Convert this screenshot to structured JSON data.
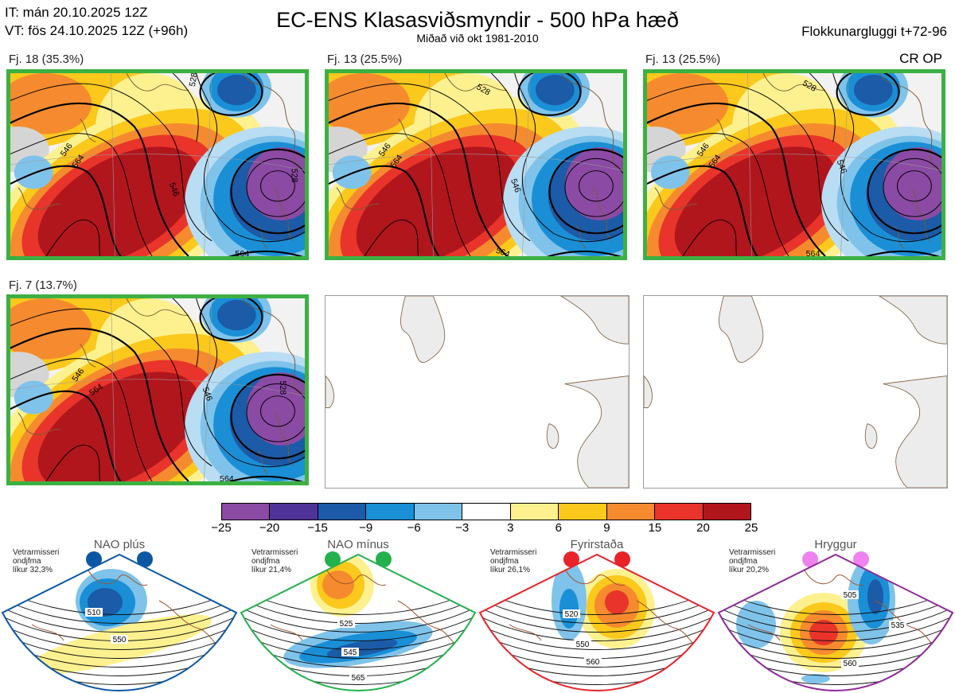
{
  "header": {
    "it": "IT: mán 20.10.2025 12Z",
    "vt": "VT: fös 24.10.2025 12Z  (+96h)",
    "title": "EC-ENS Klasasviðsmyndir - 500 hPa hæð",
    "subtitle": "Miðað við okt 1981-2010",
    "window": "Flokkunargluggi t+72-96",
    "legend_tag": "CR OP"
  },
  "panels": [
    {
      "label": "Fj. 18 (35.3%)",
      "highlighted": true,
      "contours": [
        "528",
        "546",
        "564",
        "528",
        "564",
        "546"
      ]
    },
    {
      "label": "Fj. 13 (25.5%)",
      "highlighted": true,
      "contours": [
        "528",
        "546",
        "564",
        "546",
        "564"
      ]
    },
    {
      "label": "Fj. 13 (25.5%)",
      "highlighted": true,
      "contours": [
        "528",
        "546",
        "564",
        "546",
        "564"
      ]
    },
    {
      "label": "Fj. 7 (13.7%)",
      "highlighted": true,
      "contours": [
        "546",
        "564",
        "546",
        "528",
        "564"
      ]
    },
    {
      "label": "",
      "highlighted": false,
      "contours": []
    },
    {
      "label": "",
      "highlighted": false,
      "contours": []
    }
  ],
  "colorbar": {
    "ticks": [
      "−25",
      "−20",
      "−15",
      "−9",
      "−6",
      "−3",
      "3",
      "6",
      "9",
      "15",
      "20",
      "25"
    ],
    "colors": [
      "#8b4aa4",
      "#4f3399",
      "#1b5ba7",
      "#1a8fd6",
      "#7fc3ea",
      "#ffffff",
      "#fdf18f",
      "#fbc81c",
      "#f58b2e",
      "#e8342a",
      "#b1161d"
    ]
  },
  "regimes": [
    {
      "name": "NAO plús",
      "meta1": "Vetrarmisseri",
      "meta2": "ondjfma",
      "meta3": "líkur 32,3%",
      "color": "#0b57a4",
      "contours": [
        "510",
        "550"
      ]
    },
    {
      "name": "NAO mínus",
      "meta1": "Vetrarmisseri",
      "meta2": "ondjfma",
      "meta3": "líkur 21,4%",
      "color": "#22b14c",
      "contours": [
        "525",
        "545",
        "565"
      ]
    },
    {
      "name": "Fyrirstaða",
      "meta1": "Vetrarmisseri",
      "meta2": "ondjfma",
      "meta3": "líkur 26,1%",
      "color": "#e8232a",
      "contours": [
        "520",
        "550",
        "560"
      ]
    },
    {
      "name": "Hryggur",
      "meta1": "Vetrarmisseri",
      "meta2": "ondjfma",
      "meta3": "líkur 20,2%",
      "color": "#8e2a99",
      "contours": [
        "505",
        "535",
        "560"
      ]
    }
  ]
}
